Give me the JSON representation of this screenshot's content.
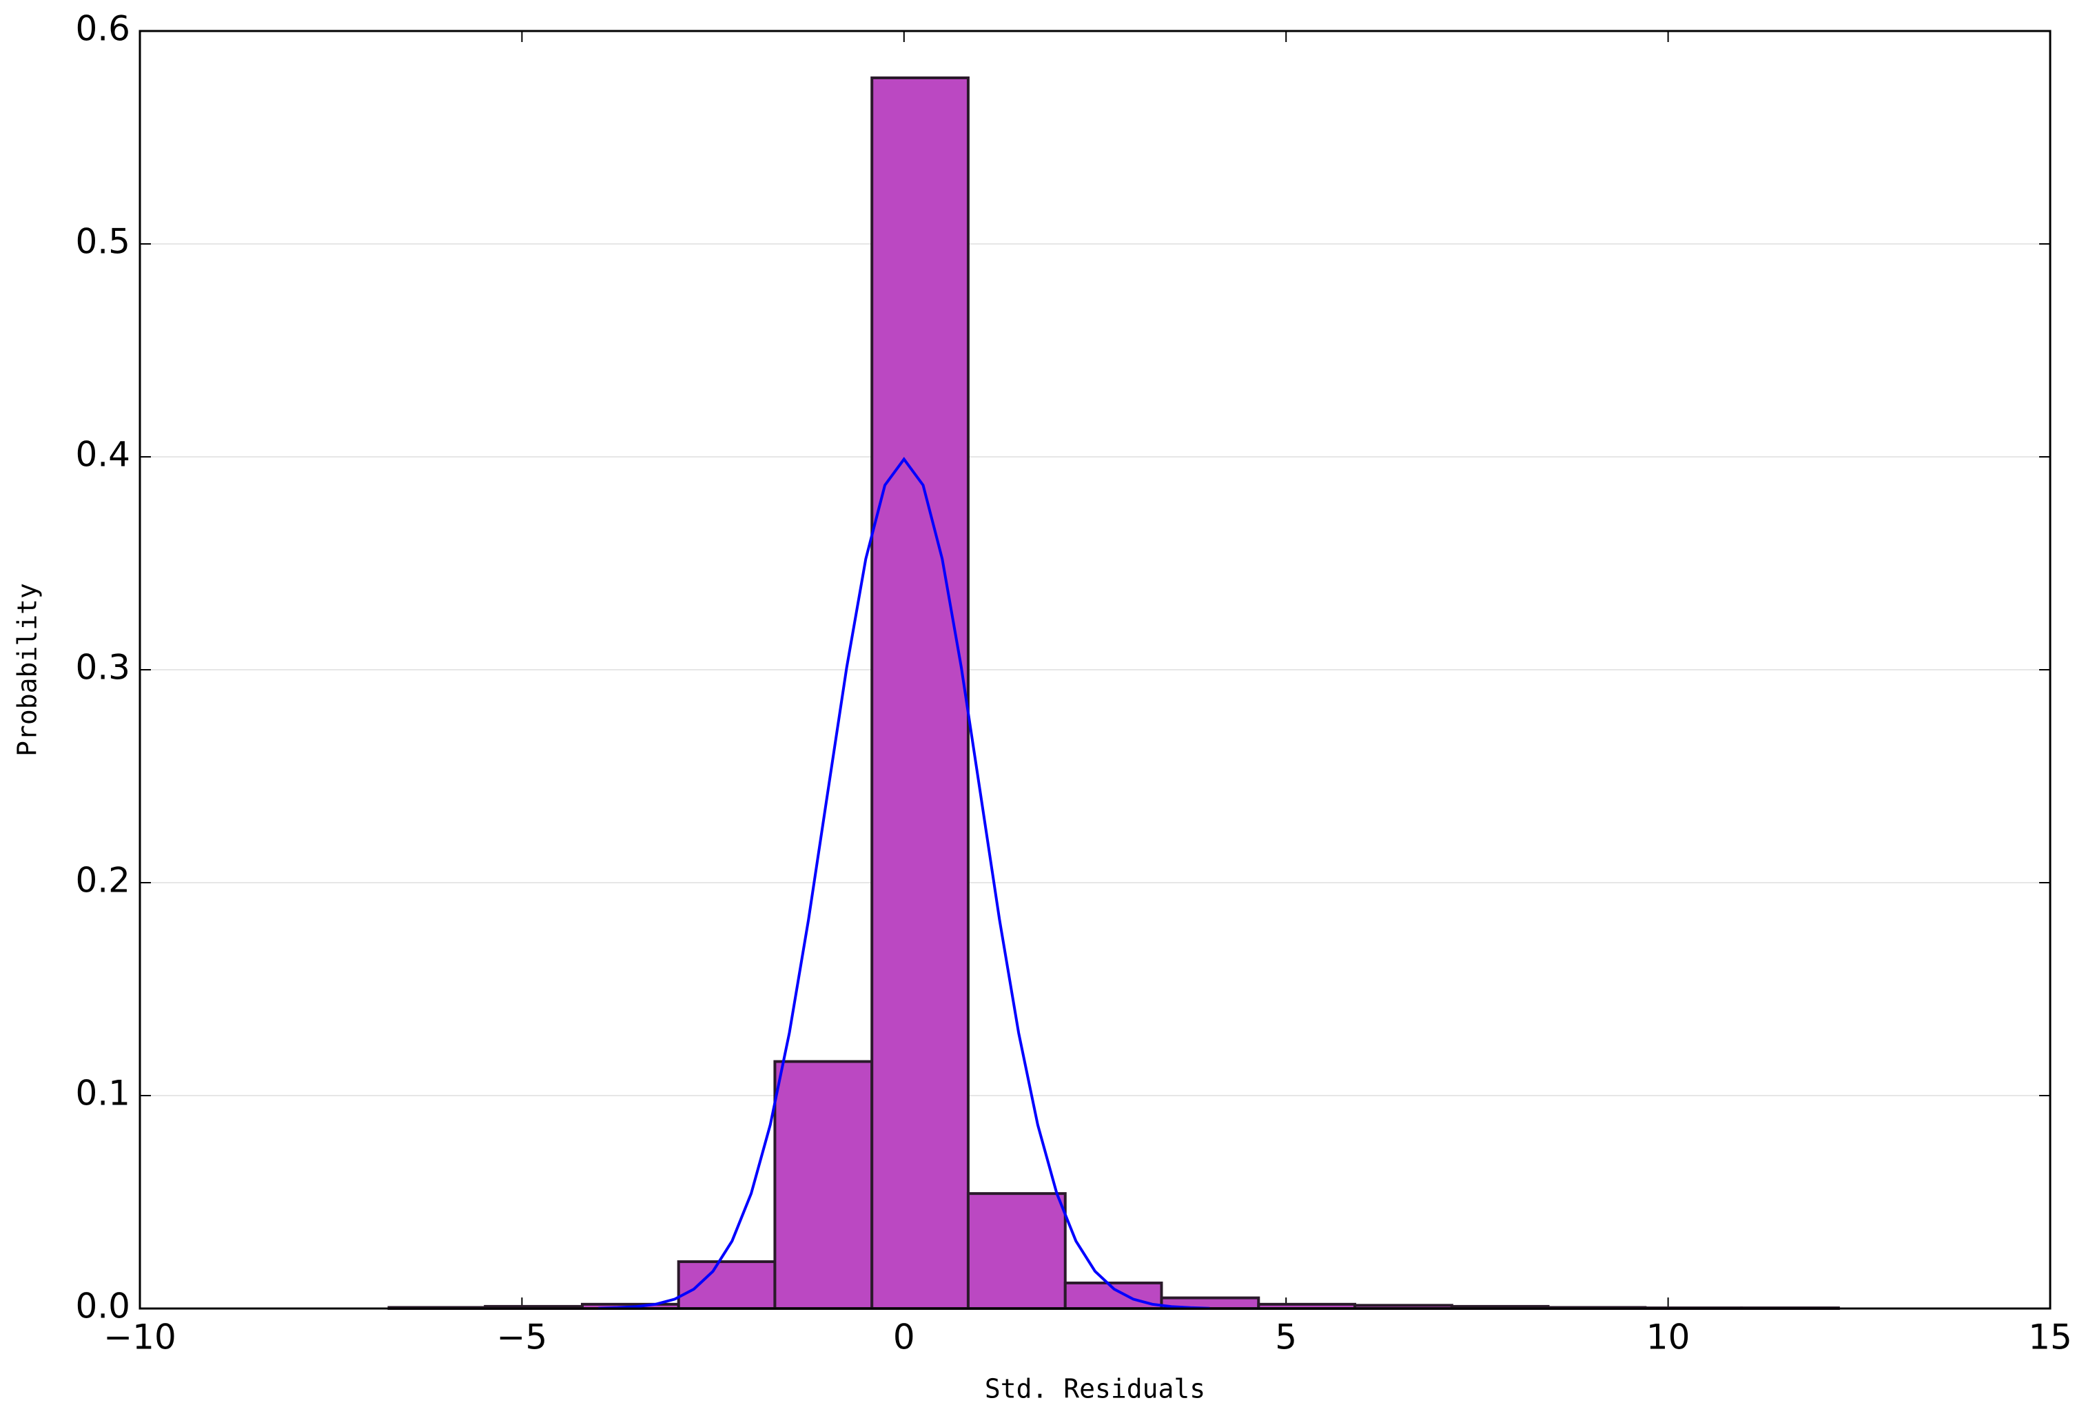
{
  "chart_data": {
    "type": "histogram",
    "xlabel": "Std. Residuals",
    "ylabel": "Probability",
    "bins": [
      -6.74,
      -5.48,
      -4.21,
      -2.95,
      -1.69,
      -0.42,
      0.84,
      2.11,
      3.37,
      4.64,
      5.9,
      7.17,
      8.43,
      9.7,
      10.96,
      12.23
    ],
    "values": [
      0.0005,
      0.001,
      0.002,
      0.022,
      0.116,
      0.578,
      0.054,
      0.012,
      0.005,
      0.002,
      0.0015,
      0.001,
      0.0005,
      0.0003,
      0.0003
    ],
    "color": "#bb48c2",
    "edgecolor": "#2a1a2a",
    "overlay": {
      "type": "line",
      "color": "#0000ff",
      "x": [
        -4,
        -3.75,
        -3.5,
        -3.25,
        -3,
        -2.75,
        -2.5,
        -2.25,
        -2,
        -1.75,
        -1.5,
        -1.25,
        -1,
        -0.75,
        -0.5,
        -0.25,
        0,
        0.25,
        0.5,
        0.75,
        1,
        1.25,
        1.5,
        1.75,
        2,
        2.25,
        2.5,
        2.75,
        3,
        3.25,
        3.5,
        3.75,
        4
      ],
      "values": [
        0.0001,
        0.0004,
        0.0009,
        0.002,
        0.0044,
        0.0091,
        0.0175,
        0.0317,
        0.054,
        0.0863,
        0.1295,
        0.1826,
        0.242,
        0.3011,
        0.3521,
        0.3867,
        0.3989,
        0.3867,
        0.3521,
        0.3011,
        0.242,
        0.1826,
        0.1295,
        0.0863,
        0.054,
        0.0317,
        0.0175,
        0.0091,
        0.0044,
        0.002,
        0.0009,
        0.0004,
        0.0001
      ]
    },
    "xlim": [
      -10,
      15
    ],
    "ylim": [
      0,
      0.6
    ],
    "xticks": [
      {
        "value": -10,
        "label": "−10"
      },
      {
        "value": -5,
        "label": "−5"
      },
      0,
      5,
      10,
      15
    ],
    "yticks": [
      {
        "value": 0,
        "label": "0.0"
      },
      0.1,
      0.2,
      0.3,
      0.4,
      0.5,
      0.6
    ],
    "grid": true
  }
}
